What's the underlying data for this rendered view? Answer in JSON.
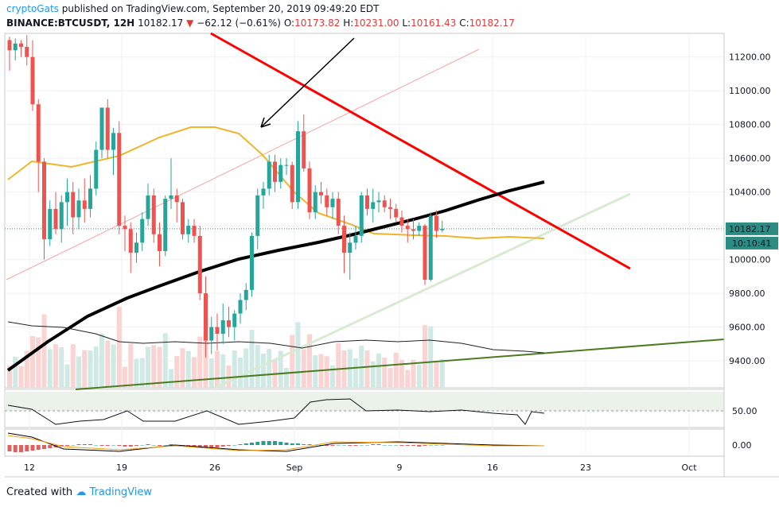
{
  "header": {
    "publisher": "cryptoGats",
    "published_text": "published on TradingView.com, September 20, 2019 09:49:20 EDT",
    "symbol": "BINANCE:BTCUSDT, 12H",
    "last": "10182.17",
    "arrow": "▼",
    "change": "−62.12 (−0.61%)",
    "o_label": "O:",
    "o_value": "10173.82",
    "h_label": "H:",
    "h_value": "10231.00",
    "l_label": "L:",
    "l_value": "10161.43",
    "c_label": "C:",
    "c_value": "10182.17"
  },
  "footer": {
    "created_with": "Created with",
    "brand": "TradingView"
  },
  "colors": {
    "up": "#26a69a",
    "down": "#ef5350",
    "ma50": "#f0b429",
    "ma200": "#000000",
    "trend_red": "#ff0000",
    "trend_green": "#4a7c1f",
    "channel": "#f4a6a6",
    "channel_green": "#d9ead3",
    "price_tag": "#2a8c82"
  },
  "chart_data": {
    "type": "candlestick",
    "symbol": "BTCUSDT",
    "timeframe": "12H",
    "x_ticks": [
      "12",
      "19",
      "26",
      "Sep",
      "9",
      "16",
      "23",
      "Oct"
    ],
    "y_ticks": [
      "11200.00",
      "11000.00",
      "10800.00",
      "10600.00",
      "10400.00",
      "10200.00",
      "10000.00",
      "9800.00",
      "9600.00",
      "9400.00"
    ],
    "ylim": [
      9240,
      11340
    ],
    "price_label": "10182.17",
    "countdown_label": "10:10:41",
    "rsi_tick": "50.00",
    "macd_tick": "0.00",
    "candles": [
      [
        11300,
        11320,
        11120,
        11240
      ],
      [
        11240,
        11310,
        11180,
        11280
      ],
      [
        11280,
        11300,
        11200,
        11260
      ],
      [
        11260,
        11330,
        11150,
        11200
      ],
      [
        11200,
        11300,
        10880,
        10920
      ],
      [
        10920,
        10950,
        10400,
        10580
      ],
      [
        10580,
        10600,
        10000,
        10120
      ],
      [
        10120,
        10350,
        10080,
        10300
      ],
      [
        10300,
        10400,
        10150,
        10180
      ],
      [
        10180,
        10380,
        10100,
        10340
      ],
      [
        10340,
        10480,
        10200,
        10400
      ],
      [
        10400,
        10460,
        10150,
        10250
      ],
      [
        10250,
        10420,
        10180,
        10350
      ],
      [
        10350,
        10480,
        10220,
        10300
      ],
      [
        10300,
        10500,
        10250,
        10420
      ],
      [
        10420,
        10700,
        10380,
        10650
      ],
      [
        10650,
        10900,
        10600,
        10900
      ],
      [
        10900,
        10950,
        10600,
        10650
      ],
      [
        10650,
        10780,
        10500,
        10750
      ],
      [
        10750,
        10820,
        10150,
        10200
      ],
      [
        10200,
        10260,
        10050,
        10180
      ],
      [
        10180,
        10220,
        9920,
        10040
      ],
      [
        10040,
        10160,
        9980,
        10100
      ],
      [
        10100,
        10280,
        10050,
        10240
      ],
      [
        10240,
        10450,
        10200,
        10380
      ],
      [
        10380,
        10420,
        10100,
        10150
      ],
      [
        10150,
        10220,
        9960,
        10050
      ],
      [
        10050,
        10380,
        10020,
        10360
      ],
      [
        10360,
        10600,
        10300,
        10380
      ],
      [
        10380,
        10420,
        10220,
        10340
      ],
      [
        10340,
        10360,
        10120,
        10150
      ],
      [
        10150,
        10240,
        10100,
        10200
      ],
      [
        10200,
        10240,
        10100,
        10140
      ],
      [
        10140,
        10200,
        9760,
        9800
      ],
      [
        9800,
        9900,
        9420,
        9520
      ],
      [
        9520,
        9660,
        9440,
        9600
      ],
      [
        9600,
        9680,
        9460,
        9560
      ],
      [
        9560,
        9740,
        9500,
        9640
      ],
      [
        9640,
        9720,
        9540,
        9600
      ],
      [
        9600,
        9700,
        9520,
        9680
      ],
      [
        9680,
        9800,
        9620,
        9760
      ],
      [
        9760,
        9860,
        9700,
        9820
      ],
      [
        9820,
        10160,
        9780,
        10140
      ],
      [
        10140,
        10420,
        10060,
        10380
      ],
      [
        10380,
        10460,
        10300,
        10420
      ],
      [
        10420,
        10620,
        10380,
        10580
      ],
      [
        10580,
        10620,
        10400,
        10460
      ],
      [
        10460,
        10600,
        10420,
        10560
      ],
      [
        10560,
        10600,
        10500,
        10560
      ],
      [
        10560,
        10580,
        10300,
        10340
      ],
      [
        10340,
        10820,
        10300,
        10760
      ],
      [
        10760,
        10860,
        10520,
        10540
      ],
      [
        10540,
        10580,
        10240,
        10280
      ],
      [
        10280,
        10440,
        10240,
        10400
      ],
      [
        10400,
        10460,
        10330,
        10380
      ],
      [
        10380,
        10420,
        10260,
        10310
      ],
      [
        10310,
        10400,
        10240,
        10360
      ],
      [
        10360,
        10400,
        10150,
        10200
      ],
      [
        10200,
        10260,
        9920,
        10040
      ],
      [
        10040,
        10160,
        9880,
        10100
      ],
      [
        10100,
        10200,
        10060,
        10140
      ],
      [
        10140,
        10400,
        10100,
        10380
      ],
      [
        10380,
        10420,
        10260,
        10300
      ],
      [
        10300,
        10420,
        10220,
        10340
      ],
      [
        10340,
        10400,
        10280,
        10350
      ],
      [
        10350,
        10380,
        10280,
        10310
      ],
      [
        10310,
        10360,
        10240,
        10300
      ],
      [
        10300,
        10330,
        10220,
        10250
      ],
      [
        10250,
        10290,
        10160,
        10200
      ],
      [
        10200,
        10240,
        10100,
        10180
      ],
      [
        10180,
        10240,
        10120,
        10170
      ],
      [
        10170,
        10220,
        10140,
        10200
      ],
      [
        10200,
        10210,
        9850,
        9880
      ],
      [
        9880,
        10280,
        9870,
        10260
      ],
      [
        10260,
        10290,
        10130,
        10170
      ],
      [
        10173.82,
        10231,
        10161.43,
        10182.17
      ]
    ]
  }
}
